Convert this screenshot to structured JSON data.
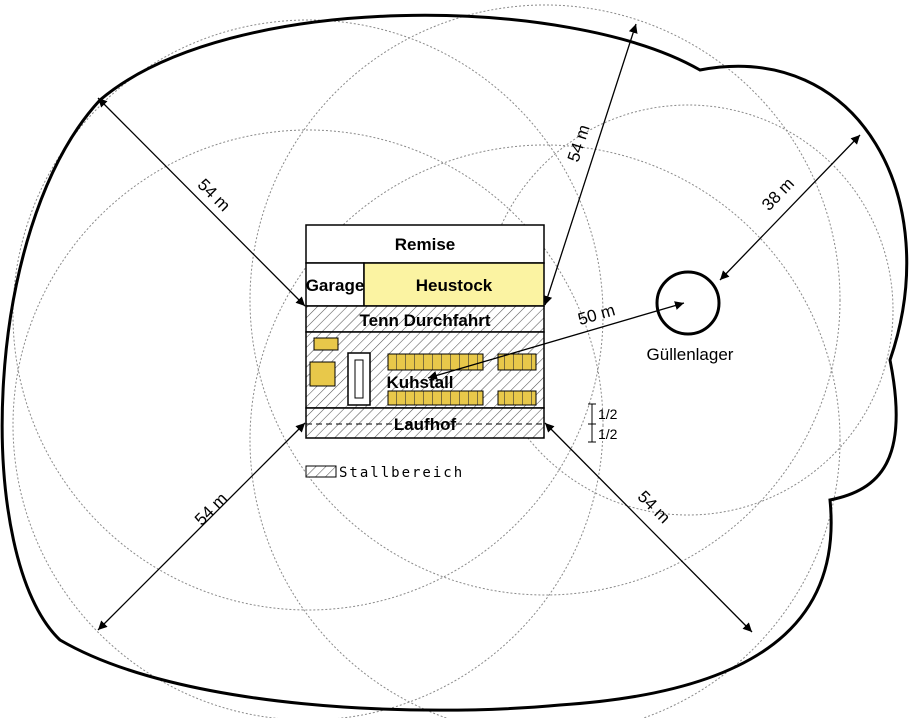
{
  "buildings": {
    "remise": "Remise",
    "garage": "Garage",
    "heustock": "Heustock",
    "tenn": "Tenn Durchfahrt",
    "kuhstall": "Kuhstall",
    "laufhof": "Laufhof"
  },
  "slurry_store": "Güllenlager",
  "dimensions": {
    "upper_left": "54 m",
    "upper_mid": "54 m",
    "right": "38 m",
    "center": "50 m",
    "lower_left": "54 m",
    "lower_right": "54 m"
  },
  "fractions": [
    "1/2",
    "1/2"
  ],
  "legend": "Stallbereich",
  "colors": {
    "heustock_fill": "#fbf3a2",
    "cow_slot_fill": "#e8c84a",
    "hatch": "#555555",
    "circle_line": "#8a8a8a",
    "outline": "#000000"
  }
}
